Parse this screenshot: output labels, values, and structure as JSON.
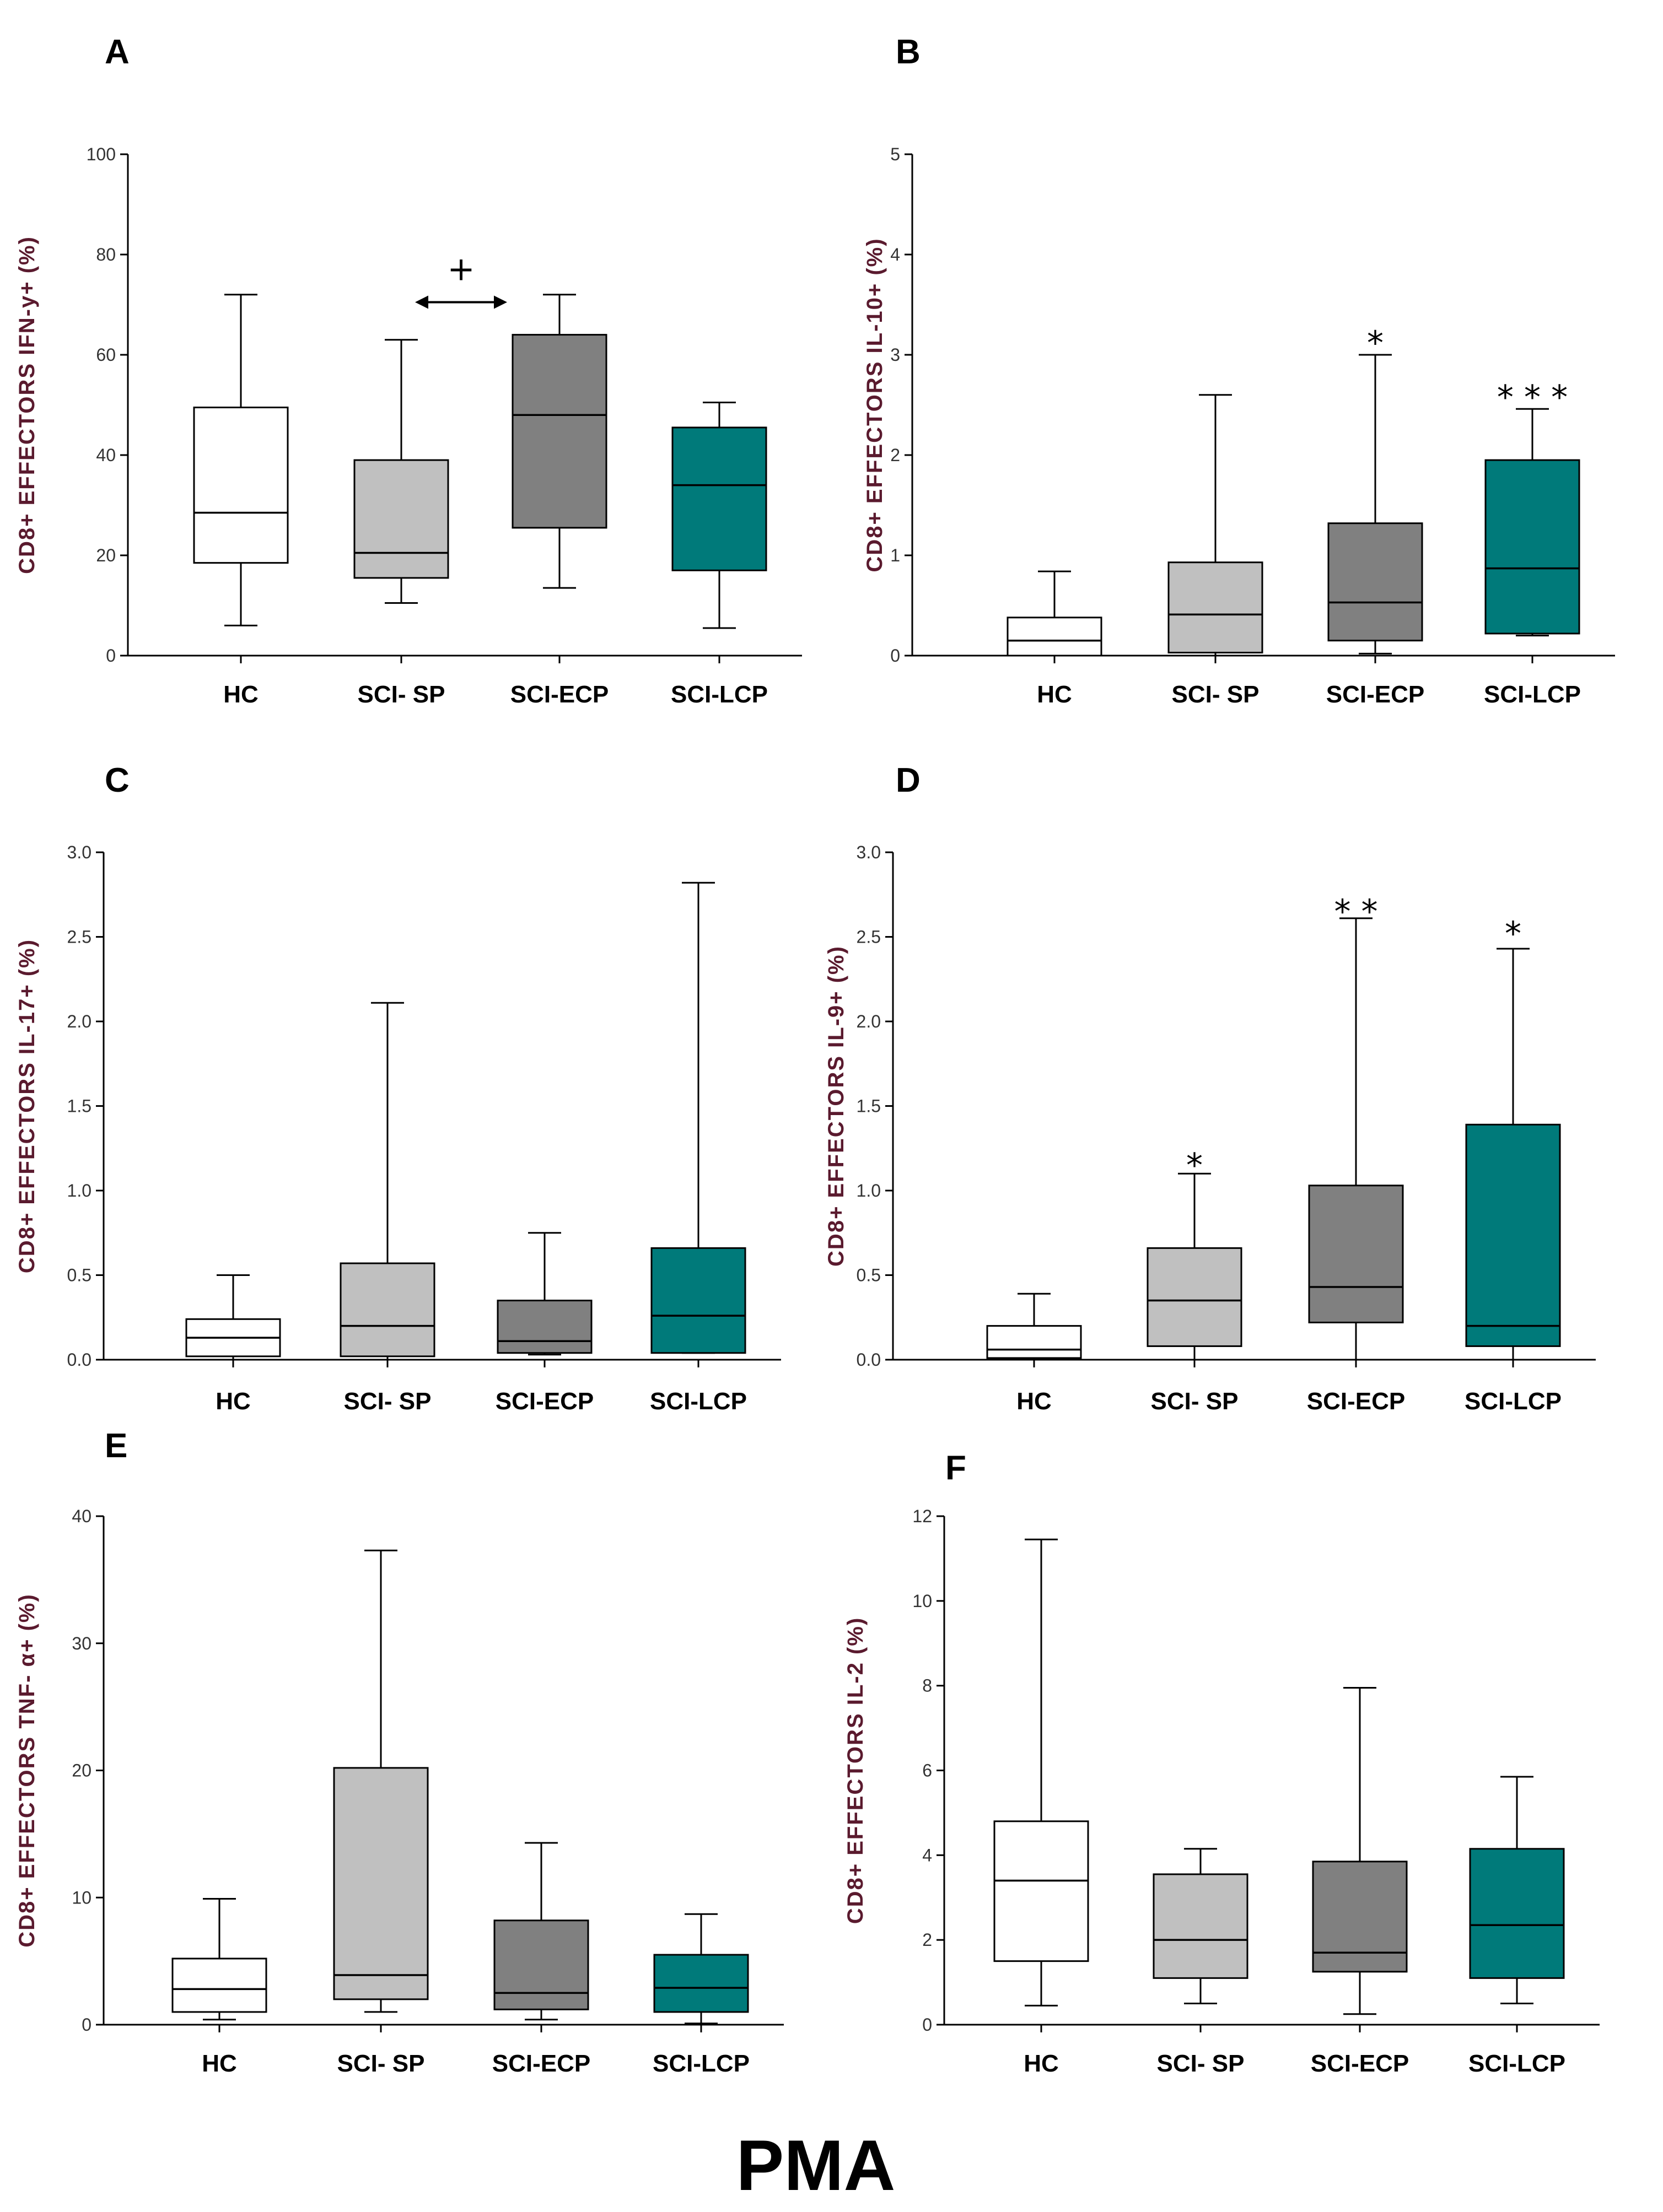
{
  "footer": {
    "label": "PMA"
  },
  "colors": {
    "HC": "#ffffff",
    "SCI-SP": "#c0c0c0",
    "SCI-ECP": "#808080",
    "SCI-LCP": "#007a7a"
  },
  "chart_data": [
    {
      "panel": "A",
      "type": "box",
      "ylabel": "CD8+ EFFECTORS  IFN-y+ (%)",
      "ylim": [
        0,
        100
      ],
      "yticks": [
        "0",
        "20",
        "40",
        "60",
        "80",
        "100"
      ],
      "categories": [
        "HC",
        "SCI- SP",
        "SCI-ECP",
        "SCI-LCP"
      ],
      "boxes": [
        {
          "whisker_low": 6,
          "q1": 18.5,
          "median": 28.5,
          "q3": 49.5,
          "whisker_high": 72
        },
        {
          "whisker_low": 10.5,
          "q1": 15.5,
          "median": 20.5,
          "q3": 39,
          "whisker_high": 63
        },
        {
          "whisker_low": 13.5,
          "q1": 25.5,
          "median": 48,
          "q3": 64,
          "whisker_high": 72
        },
        {
          "whisker_low": 5.5,
          "q1": 17,
          "median": 34,
          "q3": 45.5,
          "whisker_high": 50.5
        }
      ],
      "significance": [],
      "comparisons": [
        {
          "from": 1,
          "to": 2,
          "label": "+",
          "y": 70.5
        }
      ]
    },
    {
      "panel": "B",
      "type": "box",
      "ylabel": "CD8+ EFFECTORS  IL-10+ (%)",
      "ylim": [
        0,
        5
      ],
      "yticks": [
        "0",
        "1",
        "2",
        "3",
        "4",
        "5"
      ],
      "categories": [
        "HC",
        "SCI- SP",
        "SCI-ECP",
        "SCI-LCP"
      ],
      "boxes": [
        {
          "whisker_low": 0,
          "q1": 0,
          "median": 0.15,
          "q3": 0.38,
          "whisker_high": 0.84
        },
        {
          "whisker_low": 0,
          "q1": 0.03,
          "median": 0.41,
          "q3": 0.93,
          "whisker_high": 2.6
        },
        {
          "whisker_low": 0.02,
          "q1": 0.15,
          "median": 0.53,
          "q3": 1.32,
          "whisker_high": 3.0
        },
        {
          "whisker_low": 0.2,
          "q1": 0.22,
          "median": 0.87,
          "q3": 1.95,
          "whisker_high": 2.46
        }
      ],
      "significance": [
        {
          "category": 2,
          "label": "*",
          "y": 3.17
        },
        {
          "category": 3,
          "label": "* * *",
          "y": 2.63
        }
      ],
      "comparisons": []
    },
    {
      "panel": "C",
      "type": "box",
      "ylabel": "CD8+ EFFECTORS  IL-17+ (%)",
      "ylim": [
        0,
        3.0
      ],
      "yticks": [
        "0.0",
        "0.5",
        "1.0",
        "1.5",
        "2.0",
        "2.5",
        "3.0"
      ],
      "categories": [
        "HC",
        "SCI- SP",
        "SCI-ECP",
        "SCI-LCP"
      ],
      "boxes": [
        {
          "whisker_low": 0,
          "q1": 0.02,
          "median": 0.13,
          "q3": 0.24,
          "whisker_high": 0.5
        },
        {
          "whisker_low": 0,
          "q1": 0.02,
          "median": 0.2,
          "q3": 0.57,
          "whisker_high": 2.11
        },
        {
          "whisker_low": 0.03,
          "q1": 0.04,
          "median": 0.11,
          "q3": 0.35,
          "whisker_high": 0.75
        },
        {
          "whisker_low": 0.04,
          "q1": 0.04,
          "median": 0.26,
          "q3": 0.66,
          "whisker_high": 2.82
        }
      ],
      "significance": [],
      "comparisons": []
    },
    {
      "panel": "D",
      "type": "box",
      "ylabel": "CD8+ EFFECTORS  IL-9+ (%)",
      "ylim": [
        0,
        3.0
      ],
      "yticks": [
        "0.0",
        "0.5",
        "1.0",
        "1.5",
        "2.0",
        "2.5",
        "3.0"
      ],
      "categories": [
        "HC",
        "SCI- SP",
        "SCI-ECP",
        "SCI-LCP"
      ],
      "boxes": [
        {
          "whisker_low": 0,
          "q1": 0.01,
          "median": 0.06,
          "q3": 0.2,
          "whisker_high": 0.39
        },
        {
          "whisker_low": 0,
          "q1": 0.08,
          "median": 0.35,
          "q3": 0.66,
          "whisker_high": 1.1
        },
        {
          "whisker_low": 0,
          "q1": 0.22,
          "median": 0.43,
          "q3": 1.03,
          "whisker_high": 2.61
        },
        {
          "whisker_low": 0,
          "q1": 0.08,
          "median": 0.2,
          "q3": 1.39,
          "whisker_high": 2.43
        }
      ],
      "significance": [
        {
          "category": 1,
          "label": "*",
          "y": 1.18
        },
        {
          "category": 2,
          "label": "* *",
          "y": 2.68
        },
        {
          "category": 3,
          "label": "*",
          "y": 2.55
        }
      ],
      "comparisons": []
    },
    {
      "panel": "E",
      "type": "box",
      "ylabel": "CD8+  EFFECTORS TNF- α+ (%)",
      "ylim": [
        0,
        40
      ],
      "yticks": [
        "0",
        "10",
        "20",
        "30",
        "40"
      ],
      "categories": [
        "HC",
        "SCI- SP",
        "SCI-ECP",
        "SCI-LCP"
      ],
      "boxes": [
        {
          "whisker_low": 0.4,
          "q1": 1,
          "median": 2.8,
          "q3": 5.2,
          "whisker_high": 9.9
        },
        {
          "whisker_low": 1,
          "q1": 2,
          "median": 3.9,
          "q3": 20.2,
          "whisker_high": 37.3
        },
        {
          "whisker_low": 0.4,
          "q1": 1.2,
          "median": 2.5,
          "q3": 8.2,
          "whisker_high": 14.3
        },
        {
          "whisker_low": 0.1,
          "q1": 1,
          "median": 2.9,
          "q3": 5.5,
          "whisker_high": 8.7
        }
      ],
      "significance": [],
      "comparisons": []
    },
    {
      "panel": "F",
      "type": "box",
      "ylabel": "CD8+ EFFECTORS IL-2 (%)",
      "ylim": [
        0,
        12
      ],
      "yticks": [
        "0",
        "2",
        "4",
        "6",
        "8",
        "10",
        "12"
      ],
      "categories": [
        "HC",
        "SCI- SP",
        "SCI-ECP",
        "SCI-LCP"
      ],
      "boxes": [
        {
          "whisker_low": 0.45,
          "q1": 1.5,
          "median": 3.4,
          "q3": 4.8,
          "whisker_high": 11.45
        },
        {
          "whisker_low": 0.5,
          "q1": 1.1,
          "median": 2.0,
          "q3": 3.55,
          "whisker_high": 4.15
        },
        {
          "whisker_low": 0.25,
          "q1": 1.25,
          "median": 1.7,
          "q3": 3.85,
          "whisker_high": 7.95
        },
        {
          "whisker_low": 0.5,
          "q1": 1.1,
          "median": 2.35,
          "q3": 4.15,
          "whisker_high": 5.85
        }
      ],
      "significance": [],
      "comparisons": []
    }
  ]
}
